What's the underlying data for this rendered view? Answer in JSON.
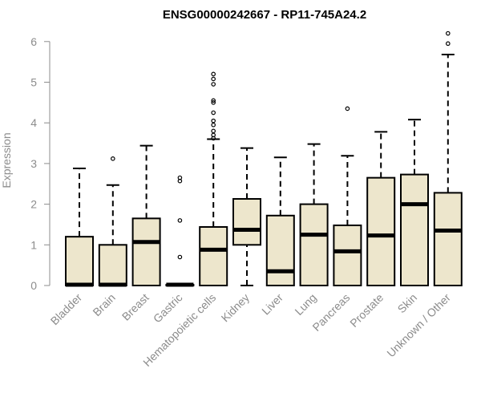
{
  "chart_data": {
    "type": "boxplot",
    "title": "ENSG00000242667 - RP11-745A24.2",
    "ylabel": "Expression",
    "xlabel": "",
    "ylim": [
      0,
      6.3
    ],
    "yticks": [
      0,
      1,
      2,
      3,
      4,
      5,
      6
    ],
    "box_fill": "#ede6cc",
    "box_stroke": "#000000",
    "axis_color": "#8c8c8c",
    "categories": [
      "Bladder",
      "Brain",
      "Breast",
      "Gastric",
      "Hematopoietic cells",
      "Kidney",
      "Liver",
      "Lung",
      "Pancreas",
      "Prostate",
      "Skin",
      "Unknown / Other"
    ],
    "boxes": [
      {
        "min": 0,
        "q1": 0,
        "median": 0.02,
        "q3": 1.2,
        "max": 2.88,
        "outliers": []
      },
      {
        "min": 0,
        "q1": 0,
        "median": 0.02,
        "q3": 1.0,
        "max": 2.47,
        "outliers": [
          3.12
        ]
      },
      {
        "min": 0,
        "q1": 0,
        "median": 1.07,
        "q3": 1.65,
        "max": 3.44,
        "outliers": []
      },
      {
        "min": 0,
        "q1": 0,
        "median": 0.02,
        "q3": 0.02,
        "max": 0.02,
        "outliers": [
          0.7,
          1.6,
          2.57,
          2.65
        ]
      },
      {
        "min": 0,
        "q1": 0,
        "median": 0.88,
        "q3": 1.44,
        "max": 3.6,
        "outliers": [
          3.62,
          3.7,
          3.8,
          3.95,
          4.05,
          4.25,
          4.5,
          4.55,
          4.95,
          5.08,
          5.2
        ]
      },
      {
        "min": 0,
        "q1": 1.0,
        "median": 1.37,
        "q3": 2.13,
        "max": 3.38,
        "outliers": []
      },
      {
        "min": 0,
        "q1": 0,
        "median": 0.35,
        "q3": 1.72,
        "max": 3.15,
        "outliers": []
      },
      {
        "min": 0,
        "q1": 0,
        "median": 1.25,
        "q3": 2.0,
        "max": 3.48,
        "outliers": []
      },
      {
        "min": 0,
        "q1": 0,
        "median": 0.84,
        "q3": 1.48,
        "max": 3.19,
        "outliers": [
          4.35
        ]
      },
      {
        "min": 0,
        "q1": 0,
        "median": 1.23,
        "q3": 2.65,
        "max": 3.78,
        "outliers": []
      },
      {
        "min": 0,
        "q1": 0,
        "median": 2.0,
        "q3": 2.73,
        "max": 4.08,
        "outliers": []
      },
      {
        "min": 0,
        "q1": 0,
        "median": 1.35,
        "q3": 2.28,
        "max": 5.68,
        "outliers": [
          5.95,
          6.2
        ]
      }
    ]
  }
}
